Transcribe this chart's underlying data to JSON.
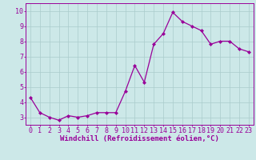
{
  "x": [
    0,
    1,
    2,
    3,
    4,
    5,
    6,
    7,
    8,
    9,
    10,
    11,
    12,
    13,
    14,
    15,
    16,
    17,
    18,
    19,
    20,
    21,
    22,
    23
  ],
  "y": [
    4.3,
    3.3,
    3.0,
    2.8,
    3.1,
    3.0,
    3.1,
    3.3,
    3.3,
    3.3,
    4.7,
    6.4,
    5.3,
    7.8,
    8.5,
    9.9,
    9.3,
    9.0,
    8.7,
    7.8,
    8.0,
    8.0,
    7.5,
    7.3
  ],
  "line_color": "#990099",
  "marker": "D",
  "markersize": 2.0,
  "linewidth": 0.9,
  "bg_color": "#cce8e8",
  "grid_color": "#aacccc",
  "xlabel": "Windchill (Refroidissement éolien,°C)",
  "xlabel_color": "#990099",
  "xlabel_fontsize": 6.5,
  "tick_color": "#990099",
  "tick_fontsize": 6,
  "ylim": [
    2.5,
    10.5
  ],
  "xlim": [
    -0.5,
    23.5
  ],
  "yticks": [
    3,
    4,
    5,
    6,
    7,
    8,
    9,
    10
  ],
  "xticks": [
    0,
    1,
    2,
    3,
    4,
    5,
    6,
    7,
    8,
    9,
    10,
    11,
    12,
    13,
    14,
    15,
    16,
    17,
    18,
    19,
    20,
    21,
    22,
    23
  ],
  "spine_color": "#990099"
}
